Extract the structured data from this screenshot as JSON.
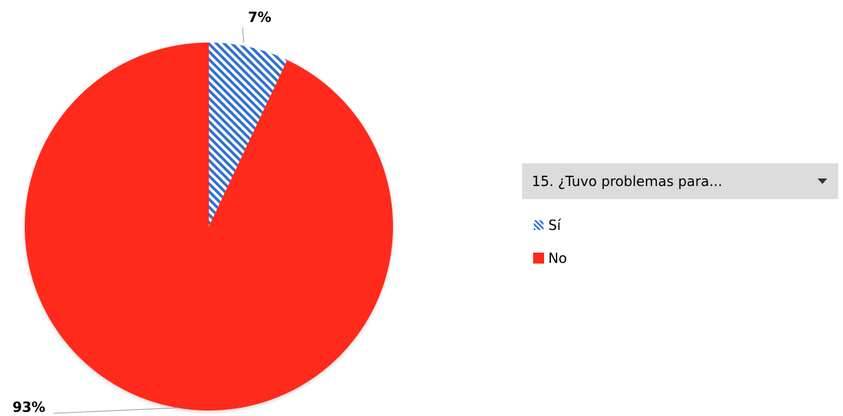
{
  "chart_data": {
    "type": "pie",
    "categories": [
      "Sí",
      "No"
    ],
    "values": [
      7,
      93
    ],
    "labels": [
      "7%",
      "93%"
    ],
    "colors": [
      "#2f6fd0",
      "#ff2a1a"
    ],
    "patterns": [
      "diagonal-hatch",
      "solid"
    ],
    "start_angle_deg": 0,
    "direction": "clockwise"
  },
  "legend": {
    "title": "15. ¿Tuvo problemas para...",
    "items": [
      {
        "label": "Sí",
        "icon": "hatched-blue-swatch"
      },
      {
        "label": "No",
        "icon": "red-swatch"
      }
    ],
    "position": "right"
  }
}
